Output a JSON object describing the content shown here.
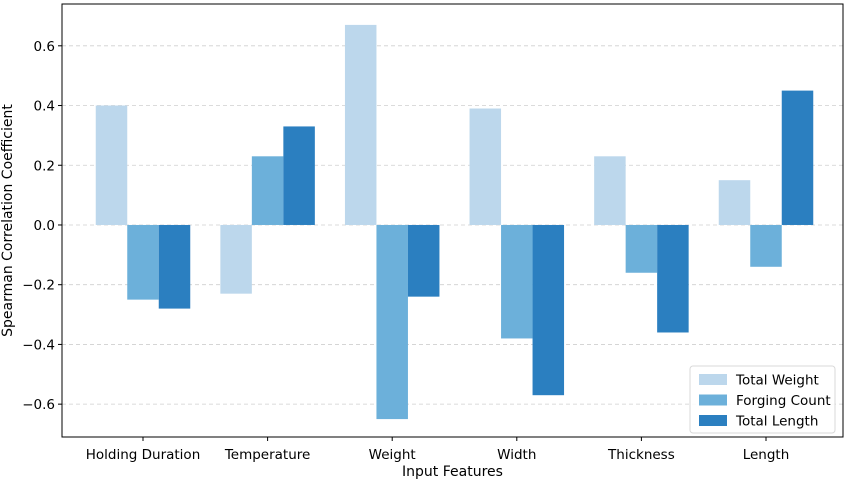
{
  "chart_data": {
    "type": "bar",
    "xlabel": "Input Features",
    "ylabel": "Spearman Correlation Coefficient",
    "categories": [
      "Holding Duration",
      "Temperature",
      "Weight",
      "Width",
      "Thickness",
      "Length"
    ],
    "series": [
      {
        "name": "Total Weight",
        "color": "#bcd7ec",
        "values": [
          0.4,
          -0.23,
          0.67,
          0.39,
          0.23,
          0.15
        ]
      },
      {
        "name": "Forging Count",
        "color": "#6cb0da",
        "values": [
          -0.25,
          0.23,
          -0.65,
          -0.38,
          -0.16,
          -0.14
        ]
      },
      {
        "name": "Total Length",
        "color": "#2b7fc0",
        "values": [
          -0.28,
          0.33,
          -0.24,
          -0.57,
          -0.36,
          0.45
        ]
      }
    ],
    "ylim": [
      -0.71,
      0.74
    ],
    "yticks": [
      -0.6,
      -0.4,
      -0.2,
      0.0,
      0.2,
      0.4,
      0.6
    ],
    "ytick_labels": [
      "−0.6",
      "−0.4",
      "−0.2",
      "0.0",
      "0.2",
      "0.4",
      "0.6"
    ],
    "grid": "y-dashed",
    "legend_position": "bottom-right"
  }
}
